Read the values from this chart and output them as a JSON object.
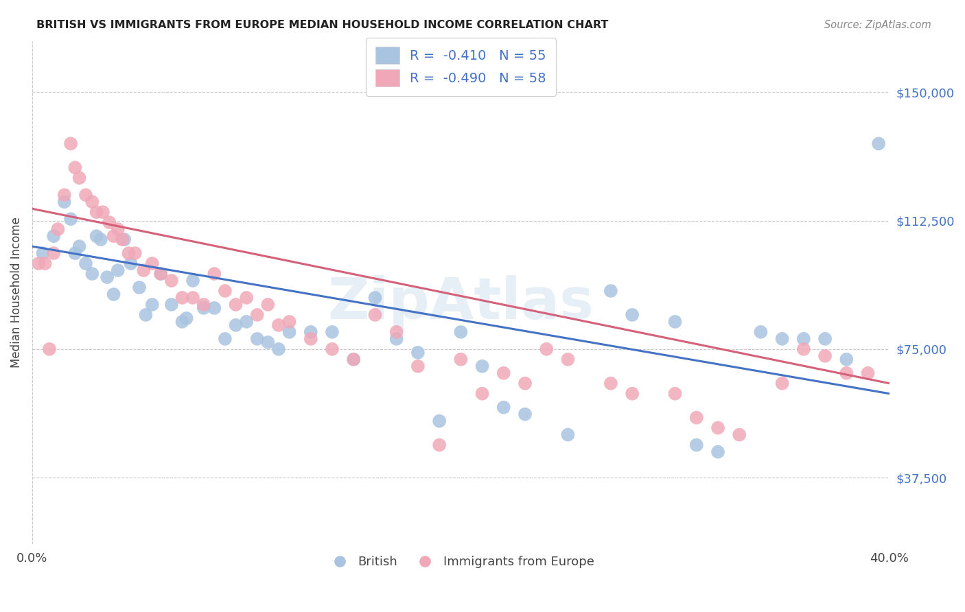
{
  "title": "BRITISH VS IMMIGRANTS FROM EUROPE MEDIAN HOUSEHOLD INCOME CORRELATION CHART",
  "source": "Source: ZipAtlas.com",
  "ylabel": "Median Household Income",
  "yticks": [
    37500,
    75000,
    112500,
    150000
  ],
  "ytick_labels": [
    "$37,500",
    "$75,000",
    "$112,500",
    "$150,000"
  ],
  "xmin": 0.0,
  "xmax": 0.4,
  "ymin": 18000,
  "ymax": 165000,
  "legend_blue_label": "R =  -0.410   N = 55",
  "legend_pink_label": "R =  -0.490   N = 58",
  "blue_color": "#a8c4e0",
  "pink_color": "#f0a8b8",
  "blue_line_color": "#4472c4",
  "pink_line_color": "#d4607a",
  "watermark": "ZipAtlas",
  "blue_scatter_x": [
    0.005,
    0.01,
    0.015,
    0.018,
    0.02,
    0.022,
    0.025,
    0.028,
    0.03,
    0.032,
    0.035,
    0.038,
    0.04,
    0.043,
    0.046,
    0.05,
    0.053,
    0.056,
    0.06,
    0.065,
    0.07,
    0.072,
    0.075,
    0.08,
    0.085,
    0.09,
    0.095,
    0.1,
    0.105,
    0.11,
    0.115,
    0.12,
    0.13,
    0.14,
    0.15,
    0.16,
    0.17,
    0.18,
    0.19,
    0.2,
    0.21,
    0.22,
    0.23,
    0.25,
    0.27,
    0.28,
    0.3,
    0.31,
    0.32,
    0.34,
    0.35,
    0.36,
    0.37,
    0.38,
    0.395
  ],
  "blue_scatter_y": [
    103000,
    108000,
    118000,
    113000,
    103000,
    105000,
    100000,
    97000,
    108000,
    107000,
    96000,
    91000,
    98000,
    107000,
    100000,
    93000,
    85000,
    88000,
    97000,
    88000,
    83000,
    84000,
    95000,
    87000,
    87000,
    78000,
    82000,
    83000,
    78000,
    77000,
    75000,
    80000,
    80000,
    80000,
    72000,
    90000,
    78000,
    74000,
    54000,
    80000,
    70000,
    58000,
    56000,
    50000,
    92000,
    85000,
    83000,
    47000,
    45000,
    80000,
    78000,
    78000,
    78000,
    72000,
    135000
  ],
  "pink_scatter_x": [
    0.003,
    0.006,
    0.008,
    0.01,
    0.012,
    0.015,
    0.018,
    0.02,
    0.022,
    0.025,
    0.028,
    0.03,
    0.033,
    0.036,
    0.038,
    0.04,
    0.042,
    0.045,
    0.048,
    0.052,
    0.056,
    0.06,
    0.065,
    0.07,
    0.075,
    0.08,
    0.085,
    0.09,
    0.095,
    0.1,
    0.105,
    0.11,
    0.115,
    0.12,
    0.13,
    0.14,
    0.15,
    0.16,
    0.17,
    0.18,
    0.19,
    0.2,
    0.21,
    0.22,
    0.23,
    0.24,
    0.25,
    0.27,
    0.28,
    0.3,
    0.31,
    0.32,
    0.33,
    0.35,
    0.36,
    0.37,
    0.38,
    0.39
  ],
  "pink_scatter_y": [
    100000,
    100000,
    75000,
    103000,
    110000,
    120000,
    135000,
    128000,
    125000,
    120000,
    118000,
    115000,
    115000,
    112000,
    108000,
    110000,
    107000,
    103000,
    103000,
    98000,
    100000,
    97000,
    95000,
    90000,
    90000,
    88000,
    97000,
    92000,
    88000,
    90000,
    85000,
    88000,
    82000,
    83000,
    78000,
    75000,
    72000,
    85000,
    80000,
    70000,
    47000,
    72000,
    62000,
    68000,
    65000,
    75000,
    72000,
    65000,
    62000,
    62000,
    55000,
    52000,
    50000,
    65000,
    75000,
    73000,
    68000,
    68000
  ],
  "blue_line_x0": 0.0,
  "blue_line_x1": 0.4,
  "blue_line_y0": 105000,
  "blue_line_y1": 62000,
  "pink_line_x0": 0.0,
  "pink_line_x1": 0.4,
  "pink_line_y0": 116000,
  "pink_line_y1": 65000
}
